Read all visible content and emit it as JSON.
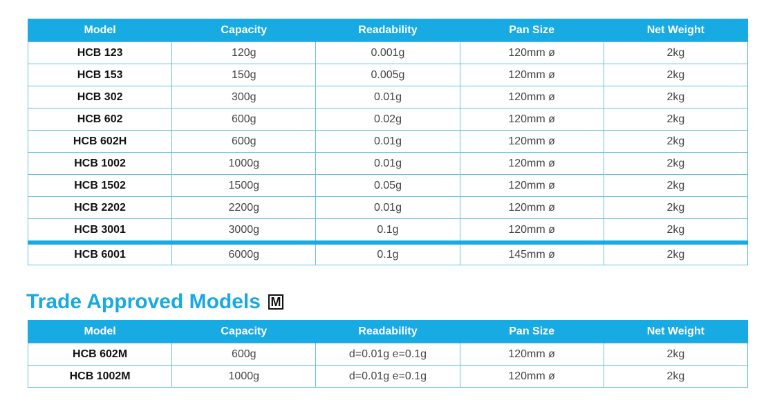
{
  "headers": [
    "Model",
    "Capacity",
    "Readability",
    "Pan Size",
    "Net Weight"
  ],
  "main_rows": [
    {
      "model": "HCB 123",
      "capacity": "120g",
      "readability": "0.001g",
      "pan_size": "120mm ø",
      "net_weight": "2kg"
    },
    {
      "model": "HCB 153",
      "capacity": "150g",
      "readability": "0.005g",
      "pan_size": "120mm ø",
      "net_weight": "2kg"
    },
    {
      "model": "HCB 302",
      "capacity": "300g",
      "readability": "0.01g",
      "pan_size": "120mm ø",
      "net_weight": "2kg"
    },
    {
      "model": "HCB 602",
      "capacity": "600g",
      "readability": "0.02g",
      "pan_size": "120mm ø",
      "net_weight": "2kg"
    },
    {
      "model": "HCB 602H",
      "capacity": "600g",
      "readability": "0.01g",
      "pan_size": "120mm ø",
      "net_weight": "2kg"
    },
    {
      "model": "HCB 1002",
      "capacity": "1000g",
      "readability": "0.01g",
      "pan_size": "120mm ø",
      "net_weight": "2kg"
    },
    {
      "model": "HCB 1502",
      "capacity": "1500g",
      "readability": "0.05g",
      "pan_size": "120mm ø",
      "net_weight": "2kg"
    },
    {
      "model": "HCB 2202",
      "capacity": "2200g",
      "readability": "0.01g",
      "pan_size": "120mm ø",
      "net_weight": "2kg"
    },
    {
      "model": "HCB 3001",
      "capacity": "3000g",
      "readability": "0.1g",
      "pan_size": "120mm ø",
      "net_weight": "2kg"
    },
    {
      "model": "HCB 6001",
      "capacity": "6000g",
      "readability": "0.1g",
      "pan_size": "145mm ø",
      "net_weight": "2kg"
    }
  ],
  "trade_heading": "Trade Approved Models",
  "trade_mark_letter": "M",
  "trade_rows": [
    {
      "model": "HCB 602M",
      "capacity": "600g",
      "readability": "d=0.01g e=0.1g",
      "pan_size": "120mm ø",
      "net_weight": "2kg"
    },
    {
      "model": "HCB 1002M",
      "capacity": "1000g",
      "readability": "d=0.01g e=0.1g",
      "pan_size": "120mm ø",
      "net_weight": "2kg"
    }
  ],
  "colors": {
    "accent": "#18aae2",
    "border": "#5fc0e8",
    "text": "#444444"
  },
  "icons": {
    "trade_mark": "metrology-m-mark-icon"
  }
}
